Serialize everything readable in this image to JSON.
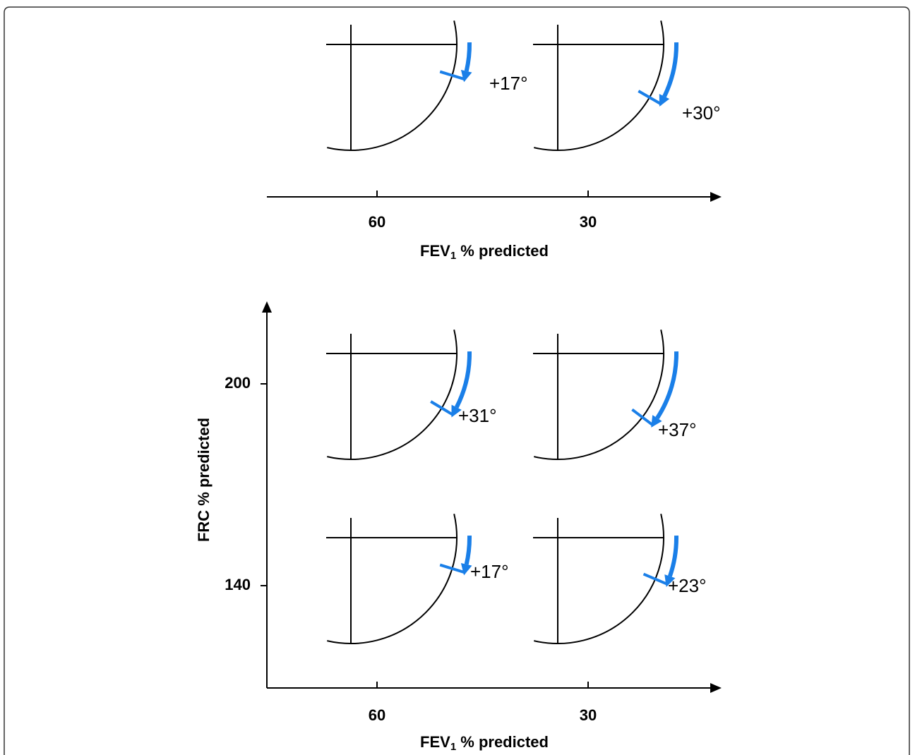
{
  "top_panel": {
    "glyphs": [
      {
        "angle": 17,
        "label": "+17°"
      },
      {
        "angle": 30,
        "label": "+30°"
      }
    ],
    "x_axis": {
      "ticks": [
        60,
        30
      ],
      "title": {
        "text": "FEV",
        "subscript": "1",
        "suffix": " % predicted"
      }
    }
  },
  "bottom_panel": {
    "glyphs": [
      {
        "angle": 31,
        "label": "+31°"
      },
      {
        "angle": 37,
        "label": "+37°"
      },
      {
        "angle": 17,
        "label": "+17°"
      },
      {
        "angle": 23,
        "label": "+23°"
      }
    ],
    "x_axis": {
      "ticks": [
        60,
        30
      ],
      "title": {
        "text": "FEV",
        "subscript": "1",
        "suffix": " % predicted"
      }
    },
    "y_axis": {
      "ticks": [
        200,
        140
      ],
      "title": "FRC % predicted"
    }
  }
}
